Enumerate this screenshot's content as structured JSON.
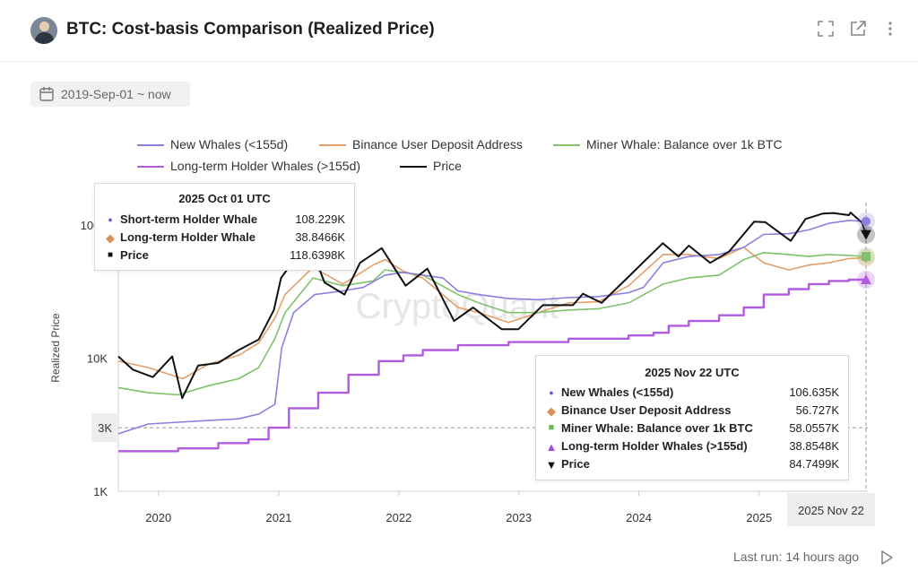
{
  "header": {
    "title": "BTC: Cost-basis Comparison (Realized Price)",
    "icons": [
      "expand-icon",
      "open-external-icon",
      "more-vertical-icon"
    ]
  },
  "date_range": {
    "label": "2019-Sep-01 ~ now",
    "icon": "calendar-icon"
  },
  "footer": {
    "last_run": "Last run: 14 hours ago",
    "icon": "play-icon"
  },
  "watermark": "CryptoQuant",
  "colors": {
    "new_whales": "#8b7fe0",
    "binance": "#e3a06a",
    "miner": "#7fc26b",
    "lth": "#b15be0",
    "price": "#111111"
  },
  "tooltip_left": {
    "title": "2025 Oct 01 UTC",
    "rows": [
      {
        "marker": "●",
        "name": "Short-term Holder Whale",
        "value": "108.229K",
        "color": "#6b5fd0"
      },
      {
        "marker": "◆",
        "name": "Long-term Holder Whale",
        "value": "38.8466K",
        "color": "#d9905a"
      },
      {
        "marker": "■",
        "name": "Price",
        "value": "118.6398K",
        "color": "#111111"
      }
    ]
  },
  "tooltip_right": {
    "title": "2025 Nov 22 UTC",
    "rows": [
      {
        "marker": "●",
        "name": "New Whales (<155d)",
        "value": "106.635K",
        "color": "#6b5fd0"
      },
      {
        "marker": "◆",
        "name": "Binance User Deposit Address",
        "value": "56.727K",
        "color": "#d9905a"
      },
      {
        "marker": "■",
        "name": "Miner Whale: Balance over 1k BTC",
        "value": "58.0557K",
        "color": "#6fb85a"
      },
      {
        "marker": "▲",
        "name": "Long-term Holder Whales (>155d)",
        "value": "38.8548K",
        "color": "#a64fd6"
      },
      {
        "marker": "▼",
        "name": "Price",
        "value": "84.7499K",
        "color": "#111111"
      }
    ]
  },
  "chart_data": {
    "type": "line",
    "ylabel": "Realized Price",
    "yscale": "log",
    "ylim": [
      1000,
      150000
    ],
    "xlim": [
      "2019-09-01",
      "2025-11-22"
    ],
    "y_ticks": [
      {
        "value": 1000,
        "label": "1K"
      },
      {
        "value": 10000,
        "label": "10K"
      },
      {
        "value": 100000,
        "label": "100K"
      }
    ],
    "crosshair_y": {
      "value": 3000,
      "label": "3K"
    },
    "crosshair_x": {
      "date": "2025-11-22",
      "label": "2025 Nov 22"
    },
    "x_ticks": [
      {
        "date": "2020-01-01",
        "label": "2020"
      },
      {
        "date": "2021-01-01",
        "label": "2021"
      },
      {
        "date": "2022-01-01",
        "label": "2022"
      },
      {
        "date": "2023-01-01",
        "label": "2023"
      },
      {
        "date": "2024-01-01",
        "label": "2024"
      },
      {
        "date": "2025-01-01",
        "label": "2025"
      }
    ],
    "legend": [
      {
        "name": "New Whales (<155d)",
        "color": "#8b7fe0"
      },
      {
        "name": "Binance User Deposit Address",
        "color": "#e3a06a"
      },
      {
        "name": "Miner Whale: Balance over 1k BTC",
        "color": "#7fc26b"
      },
      {
        "name": "Long-term Holder Whales (>155d)",
        "color": "#b15be0"
      },
      {
        "name": "Price",
        "color": "#111111"
      }
    ],
    "series": [
      {
        "name": "New Whales (<155d)",
        "color": "#8b7fe0",
        "points": [
          [
            "2019-09-01",
            2700
          ],
          [
            "2019-12-01",
            3200
          ],
          [
            "2020-03-01",
            3300
          ],
          [
            "2020-06-01",
            3400
          ],
          [
            "2020-09-01",
            3500
          ],
          [
            "2020-11-01",
            3800
          ],
          [
            "2020-12-20",
            4500
          ],
          [
            "2021-01-10",
            12000
          ],
          [
            "2021-02-15",
            22000
          ],
          [
            "2021-04-20",
            30000
          ],
          [
            "2021-07-15",
            32000
          ],
          [
            "2021-09-15",
            34000
          ],
          [
            "2021-11-20",
            42000
          ],
          [
            "2022-01-15",
            44000
          ],
          [
            "2022-03-15",
            42000
          ],
          [
            "2022-05-15",
            40000
          ],
          [
            "2022-06-30",
            32000
          ],
          [
            "2022-09-01",
            30000
          ],
          [
            "2022-12-01",
            28000
          ],
          [
            "2023-03-01",
            27500
          ],
          [
            "2023-06-01",
            28500
          ],
          [
            "2023-09-01",
            29000
          ],
          [
            "2023-12-01",
            31000
          ],
          [
            "2024-01-15",
            34000
          ],
          [
            "2024-03-15",
            52000
          ],
          [
            "2024-06-01",
            58000
          ],
          [
            "2024-09-01",
            60000
          ],
          [
            "2024-11-15",
            68000
          ],
          [
            "2025-01-15",
            85000
          ],
          [
            "2025-04-01",
            86000
          ],
          [
            "2025-06-01",
            92000
          ],
          [
            "2025-08-01",
            103000
          ],
          [
            "2025-10-01",
            108229
          ],
          [
            "2025-11-22",
            106635
          ]
        ]
      },
      {
        "name": "Binance User Deposit Address",
        "color": "#e3a06a",
        "points": [
          [
            "2019-09-01",
            9500
          ],
          [
            "2019-12-01",
            8500
          ],
          [
            "2020-03-15",
            7000
          ],
          [
            "2020-06-01",
            9000
          ],
          [
            "2020-09-01",
            10500
          ],
          [
            "2020-11-01",
            13000
          ],
          [
            "2020-12-20",
            20000
          ],
          [
            "2021-01-20",
            30000
          ],
          [
            "2021-04-15",
            48000
          ],
          [
            "2021-07-15",
            36000
          ],
          [
            "2021-10-15",
            50000
          ],
          [
            "2021-11-20",
            55000
          ],
          [
            "2022-01-15",
            45000
          ],
          [
            "2022-03-15",
            40000
          ],
          [
            "2022-06-30",
            24000
          ],
          [
            "2022-09-01",
            22000
          ],
          [
            "2022-12-01",
            18500
          ],
          [
            "2023-03-01",
            22000
          ],
          [
            "2023-06-01",
            26000
          ],
          [
            "2023-09-01",
            26500
          ],
          [
            "2023-12-01",
            35000
          ],
          [
            "2024-03-15",
            60000
          ],
          [
            "2024-06-01",
            60000
          ],
          [
            "2024-09-01",
            56000
          ],
          [
            "2024-11-15",
            68000
          ],
          [
            "2025-01-15",
            52000
          ],
          [
            "2025-04-01",
            46000
          ],
          [
            "2025-06-01",
            50000
          ],
          [
            "2025-08-01",
            52000
          ],
          [
            "2025-10-01",
            56000
          ],
          [
            "2025-11-22",
            56727
          ]
        ]
      },
      {
        "name": "Miner Whale: Balance over 1k BTC",
        "color": "#7fc26b",
        "points": [
          [
            "2019-09-01",
            6000
          ],
          [
            "2019-12-01",
            5500
          ],
          [
            "2020-03-01",
            5300
          ],
          [
            "2020-06-01",
            6200
          ],
          [
            "2020-09-01",
            7000
          ],
          [
            "2020-11-01",
            8500
          ],
          [
            "2020-12-20",
            14000
          ],
          [
            "2021-01-20",
            22000
          ],
          [
            "2021-04-15",
            40000
          ],
          [
            "2021-07-15",
            35000
          ],
          [
            "2021-10-15",
            38000
          ],
          [
            "2021-11-20",
            46000
          ],
          [
            "2022-01-15",
            44000
          ],
          [
            "2022-03-15",
            42000
          ],
          [
            "2022-06-30",
            30000
          ],
          [
            "2022-09-01",
            26000
          ],
          [
            "2022-12-01",
            22000
          ],
          [
            "2023-03-01",
            22000
          ],
          [
            "2023-06-01",
            23000
          ],
          [
            "2023-09-01",
            23500
          ],
          [
            "2023-12-01",
            26000
          ],
          [
            "2024-03-15",
            36000
          ],
          [
            "2024-06-01",
            40000
          ],
          [
            "2024-09-01",
            42000
          ],
          [
            "2024-11-15",
            55000
          ],
          [
            "2025-01-15",
            62000
          ],
          [
            "2025-04-01",
            60000
          ],
          [
            "2025-06-01",
            58000
          ],
          [
            "2025-08-01",
            60000
          ],
          [
            "2025-10-01",
            59000
          ],
          [
            "2025-11-22",
            58056
          ]
        ]
      },
      {
        "name": "Long-term Holder Whales (>155d)",
        "color": "#b15be0",
        "points": [
          [
            "2019-09-01",
            2000
          ],
          [
            "2020-03-01",
            2100
          ],
          [
            "2020-07-01",
            2300
          ],
          [
            "2020-10-01",
            2450
          ],
          [
            "2020-12-01",
            3000
          ],
          [
            "2021-02-01",
            4200
          ],
          [
            "2021-05-01",
            5500
          ],
          [
            "2021-08-01",
            7500
          ],
          [
            "2021-11-01",
            9500
          ],
          [
            "2022-01-15",
            10500
          ],
          [
            "2022-03-15",
            11500
          ],
          [
            "2022-06-30",
            12500
          ],
          [
            "2022-12-01",
            13200
          ],
          [
            "2023-06-01",
            14000
          ],
          [
            "2023-12-01",
            14800
          ],
          [
            "2024-02-15",
            15500
          ],
          [
            "2024-04-01",
            17500
          ],
          [
            "2024-06-01",
            19000
          ],
          [
            "2024-09-01",
            21000
          ],
          [
            "2024-11-15",
            24000
          ],
          [
            "2025-01-15",
            30000
          ],
          [
            "2025-04-01",
            33000
          ],
          [
            "2025-06-01",
            36000
          ],
          [
            "2025-08-01",
            38000
          ],
          [
            "2025-10-01",
            38847
          ],
          [
            "2025-11-22",
            38855
          ]
        ]
      },
      {
        "name": "Price",
        "color": "#111111",
        "points": [
          [
            "2019-09-01",
            10300
          ],
          [
            "2019-10-15",
            8200
          ],
          [
            "2019-12-15",
            7200
          ],
          [
            "2020-02-12",
            10300
          ],
          [
            "2020-03-13",
            5000
          ],
          [
            "2020-05-01",
            8800
          ],
          [
            "2020-07-01",
            9200
          ],
          [
            "2020-09-01",
            11500
          ],
          [
            "2020-11-01",
            13800
          ],
          [
            "2020-12-17",
            23000
          ],
          [
            "2021-01-08",
            40000
          ],
          [
            "2021-02-20",
            56000
          ],
          [
            "2021-04-14",
            63000
          ],
          [
            "2021-05-20",
            37000
          ],
          [
            "2021-07-20",
            30000
          ],
          [
            "2021-09-05",
            52000
          ],
          [
            "2021-11-10",
            67000
          ],
          [
            "2022-01-22",
            35000
          ],
          [
            "2022-03-29",
            47000
          ],
          [
            "2022-06-18",
            19000
          ],
          [
            "2022-08-15",
            24000
          ],
          [
            "2022-11-10",
            16500
          ],
          [
            "2022-12-31",
            16500
          ],
          [
            "2023-03-15",
            25000
          ],
          [
            "2023-06-15",
            25000
          ],
          [
            "2023-07-15",
            30500
          ],
          [
            "2023-09-10",
            26000
          ],
          [
            "2023-12-10",
            43000
          ],
          [
            "2024-03-14",
            73000
          ],
          [
            "2024-05-01",
            58000
          ],
          [
            "2024-06-01",
            70000
          ],
          [
            "2024-08-05",
            52000
          ],
          [
            "2024-10-01",
            63000
          ],
          [
            "2024-12-17",
            106000
          ],
          [
            "2025-01-20",
            105000
          ],
          [
            "2025-04-07",
            76000
          ],
          [
            "2025-05-22",
            111000
          ],
          [
            "2025-07-14",
            122000
          ],
          [
            "2025-08-14",
            123000
          ],
          [
            "2025-10-01",
            118640
          ],
          [
            "2025-10-06",
            124000
          ],
          [
            "2025-11-10",
            104000
          ],
          [
            "2025-11-22",
            84750
          ]
        ]
      }
    ]
  }
}
